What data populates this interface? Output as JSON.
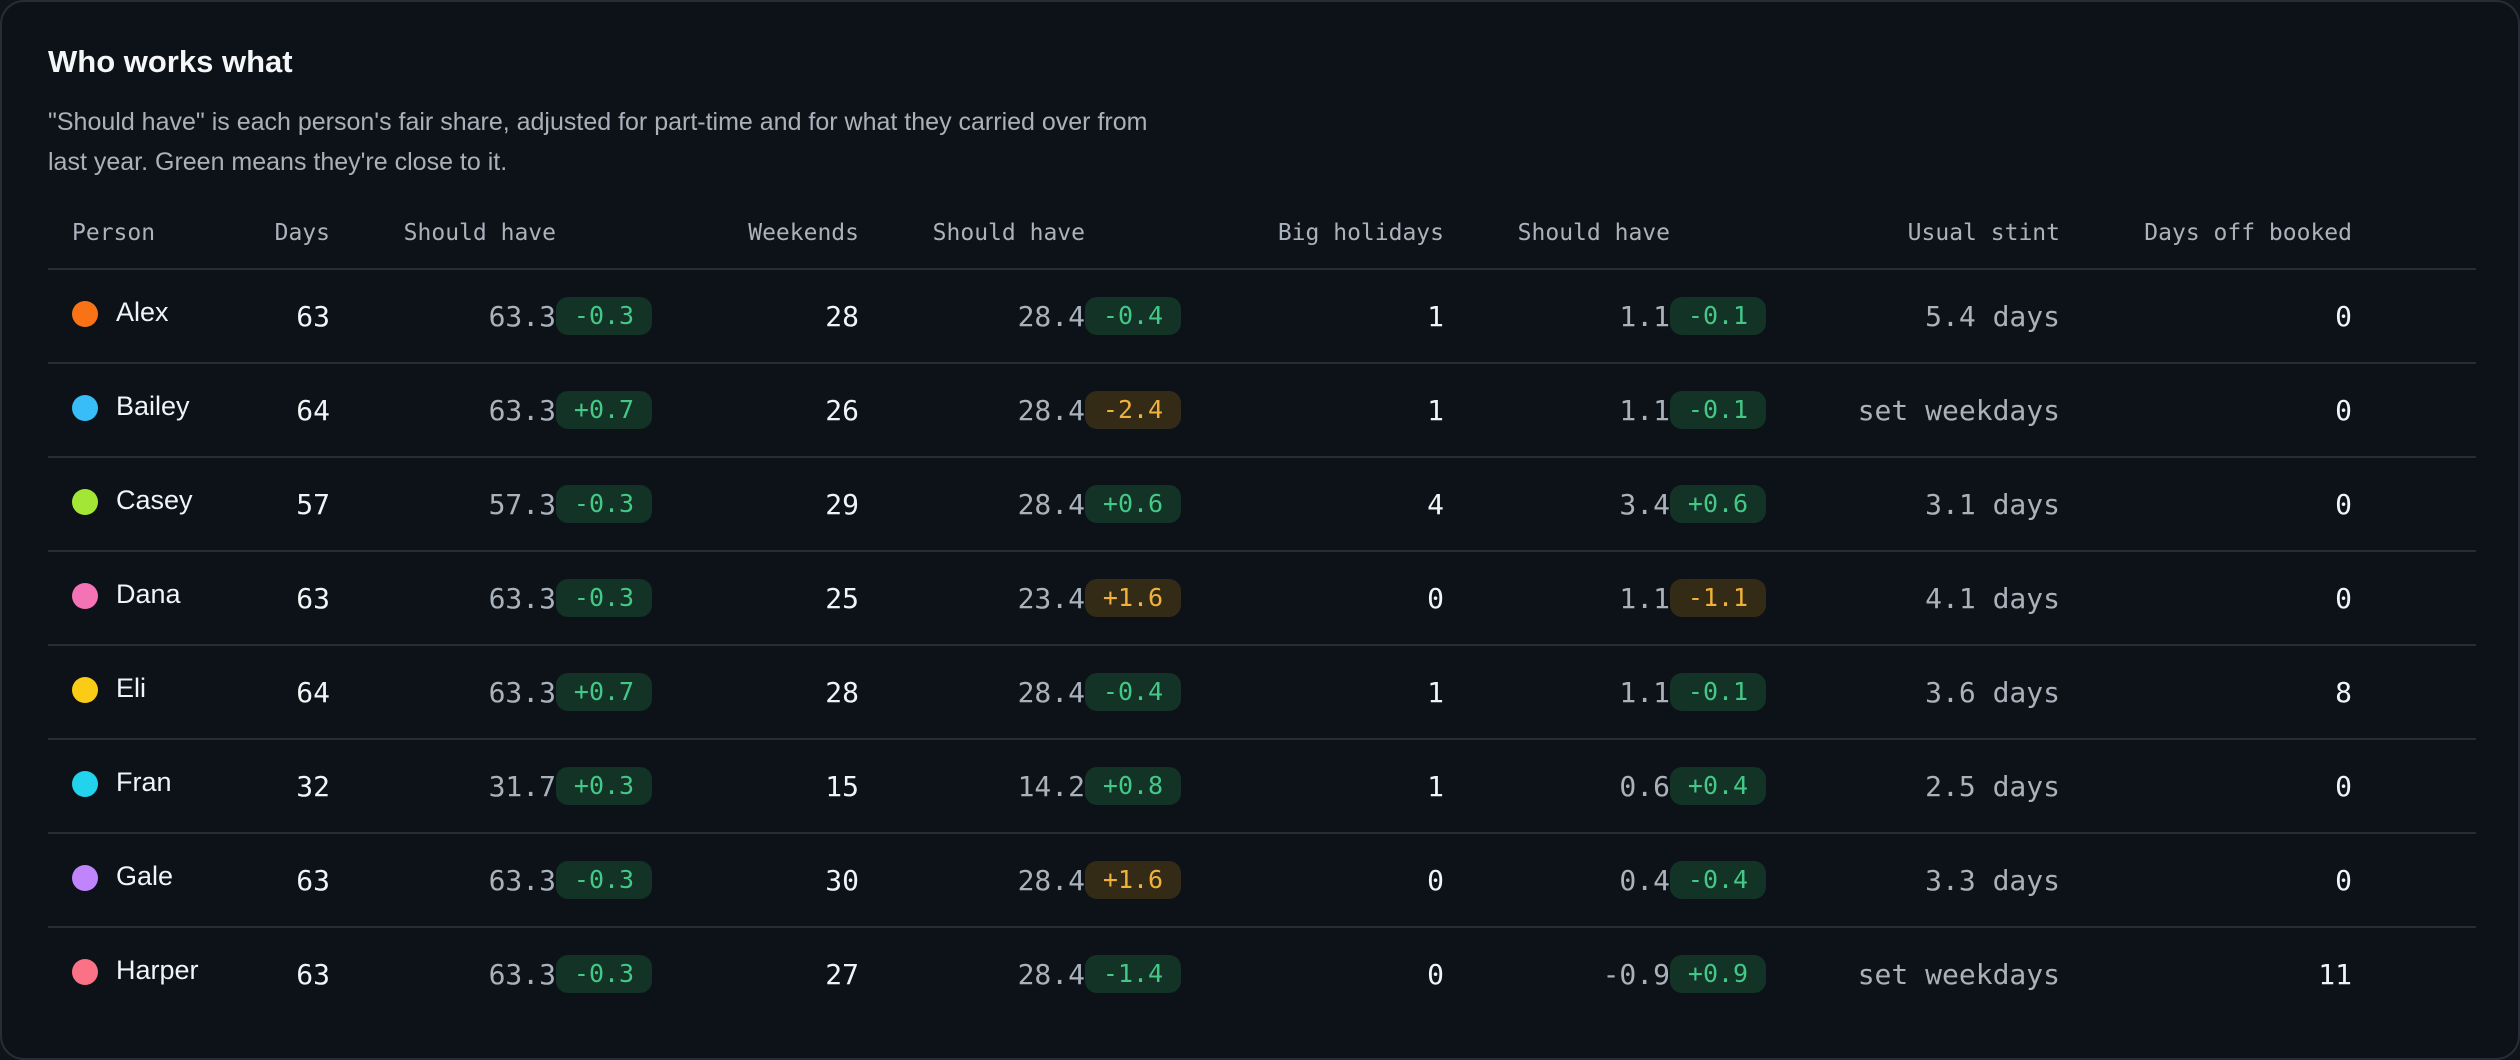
{
  "title": "Who works what",
  "subtitle": "\"Should have\" is each person's fair share, adjusted for part-time and for what they carried over from last year. Green means they're close to it.",
  "columns": {
    "person": "Person",
    "days": "Days",
    "days_should": "Should have",
    "weekends": "Weekends",
    "weekends_should": "Should have",
    "holidays": "Big holidays",
    "holidays_should": "Should have",
    "stint": "Usual stint",
    "off": "Days off booked"
  },
  "colors": {
    "good_bg": "#123325",
    "good_text": "#44c887",
    "warn_bg": "#342b16",
    "warn_text": "#f0b23c"
  },
  "rows": [
    {
      "name": "Alex",
      "color": "#f97316",
      "days": "63",
      "days_should": "63.3",
      "days_delta": "-0.3",
      "days_status": "good",
      "weekends": "28",
      "weekends_should": "28.4",
      "weekends_delta": "-0.4",
      "weekends_status": "good",
      "holidays": "1",
      "holidays_should": "1.1",
      "holidays_delta": "-0.1",
      "holidays_status": "good",
      "stint": "5.4 days",
      "off": "0"
    },
    {
      "name": "Bailey",
      "color": "#38bdf8",
      "days": "64",
      "days_should": "63.3",
      "days_delta": "+0.7",
      "days_status": "good",
      "weekends": "26",
      "weekends_should": "28.4",
      "weekends_delta": "-2.4",
      "weekends_status": "warn",
      "holidays": "1",
      "holidays_should": "1.1",
      "holidays_delta": "-0.1",
      "holidays_status": "good",
      "stint": "set weekdays",
      "off": "0"
    },
    {
      "name": "Casey",
      "color": "#a3e635",
      "days": "57",
      "days_should": "57.3",
      "days_delta": "-0.3",
      "days_status": "good",
      "weekends": "29",
      "weekends_should": "28.4",
      "weekends_delta": "+0.6",
      "weekends_status": "good",
      "holidays": "4",
      "holidays_should": "3.4",
      "holidays_delta": "+0.6",
      "holidays_status": "good",
      "stint": "3.1 days",
      "off": "0"
    },
    {
      "name": "Dana",
      "color": "#f472b6",
      "days": "63",
      "days_should": "63.3",
      "days_delta": "-0.3",
      "days_status": "good",
      "weekends": "25",
      "weekends_should": "23.4",
      "weekends_delta": "+1.6",
      "weekends_status": "warn",
      "holidays": "0",
      "holidays_should": "1.1",
      "holidays_delta": "-1.1",
      "holidays_status": "warn",
      "stint": "4.1 days",
      "off": "0"
    },
    {
      "name": "Eli",
      "color": "#facc15",
      "days": "64",
      "days_should": "63.3",
      "days_delta": "+0.7",
      "days_status": "good",
      "weekends": "28",
      "weekends_should": "28.4",
      "weekends_delta": "-0.4",
      "weekends_status": "good",
      "holidays": "1",
      "holidays_should": "1.1",
      "holidays_delta": "-0.1",
      "holidays_status": "good",
      "stint": "3.6 days",
      "off": "8"
    },
    {
      "name": "Fran",
      "color": "#22d3ee",
      "days": "32",
      "days_should": "31.7",
      "days_delta": "+0.3",
      "days_status": "good",
      "weekends": "15",
      "weekends_should": "14.2",
      "weekends_delta": "+0.8",
      "weekends_status": "good",
      "holidays": "1",
      "holidays_should": "0.6",
      "holidays_delta": "+0.4",
      "holidays_status": "good",
      "stint": "2.5 days",
      "off": "0"
    },
    {
      "name": "Gale",
      "color": "#c084fc",
      "days": "63",
      "days_should": "63.3",
      "days_delta": "-0.3",
      "days_status": "good",
      "weekends": "30",
      "weekends_should": "28.4",
      "weekends_delta": "+1.6",
      "weekends_status": "warn",
      "holidays": "0",
      "holidays_should": "0.4",
      "holidays_delta": "-0.4",
      "holidays_status": "good",
      "stint": "3.3 days",
      "off": "0"
    },
    {
      "name": "Harper",
      "color": "#fb7185",
      "days": "63",
      "days_should": "63.3",
      "days_delta": "-0.3",
      "days_status": "good",
      "weekends": "27",
      "weekends_should": "28.4",
      "weekends_delta": "-1.4",
      "weekends_status": "good",
      "holidays": "0",
      "holidays_should": "-0.9",
      "holidays_delta": "+0.9",
      "holidays_status": "good",
      "stint": "set weekdays",
      "off": "11"
    }
  ]
}
